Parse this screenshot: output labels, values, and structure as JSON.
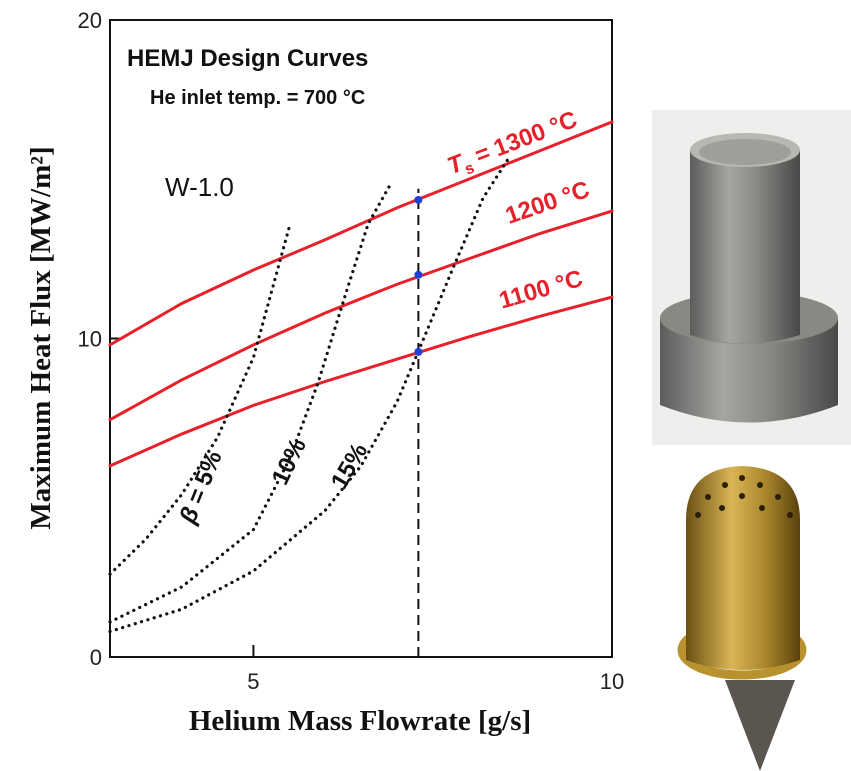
{
  "chart_data": {
    "type": "line",
    "title": "HEMJ Design Curves",
    "subtitle": "He inlet temp. = 700 °C",
    "annotation": "W-1.0",
    "x_label": "Helium Mass Flowrate [g/s]",
    "y_label": "Maximum Heat Flux [MW/m²]",
    "xlim": [
      3,
      10
    ],
    "ylim": [
      0,
      20
    ],
    "xticks": [
      5,
      10
    ],
    "yticks": [
      0,
      10,
      20
    ],
    "temperature_label_prefix": {
      "symbol": "T",
      "subscript": "s",
      "operator": "="
    },
    "ratio_label_prefix": {
      "symbol": "β",
      "operator": "="
    },
    "series": [
      {
        "name": "1300 °C",
        "color": "#e8202a",
        "style": "solid",
        "x": [
          3,
          4,
          5,
          6,
          7,
          8,
          9,
          10
        ],
        "values": [
          9.8,
          11.1,
          12.15,
          13.1,
          14.1,
          15.0,
          15.9,
          16.8
        ]
      },
      {
        "name": "1200 °C",
        "color": "#e8202a",
        "style": "solid",
        "x": [
          3,
          4,
          5,
          6,
          7,
          8,
          9,
          10
        ],
        "values": [
          7.45,
          8.7,
          9.8,
          10.8,
          11.7,
          12.5,
          13.3,
          14.0
        ]
      },
      {
        "name": "1100 °C",
        "color": "#e8202a",
        "style": "solid",
        "x": [
          3,
          4,
          5,
          6,
          7,
          8,
          9,
          10
        ],
        "values": [
          6.0,
          7.0,
          7.9,
          8.65,
          9.35,
          10.05,
          10.7,
          11.3
        ]
      },
      {
        "name": "5%",
        "color": "#111111",
        "style": "dotted",
        "x": [
          3,
          3.5,
          4,
          4.5,
          5,
          5.5
        ],
        "values": [
          2.6,
          3.7,
          5.1,
          6.9,
          9.4,
          13.5
        ]
      },
      {
        "name": "10%",
        "color": "#111111",
        "style": "dotted",
        "x": [
          3,
          4,
          5,
          5.5,
          5.9,
          6.3,
          6.6,
          6.9
        ],
        "values": [
          1.1,
          2.2,
          4.0,
          6.2,
          8.6,
          11.5,
          13.6,
          14.8
        ]
      },
      {
        "name": "15%",
        "color": "#111111",
        "style": "dotted",
        "x": [
          3,
          4,
          5,
          6,
          6.5,
          7,
          7.3,
          7.8,
          8.2,
          8.57
        ],
        "values": [
          0.8,
          1.5,
          2.7,
          4.6,
          6.0,
          8.0,
          9.6,
          12.3,
          14.4,
          15.7
        ]
      },
      {
        "color": "#111111",
        "style": "dashed",
        "x": [
          7.3,
          7.3
        ],
        "values": [
          0,
          14.7
        ]
      }
    ],
    "points": {
      "color": "#1f3fd6",
      "x": [
        7.3,
        7.3,
        7.3
      ],
      "values": [
        14.35,
        12.0,
        9.58
      ]
    }
  }
}
